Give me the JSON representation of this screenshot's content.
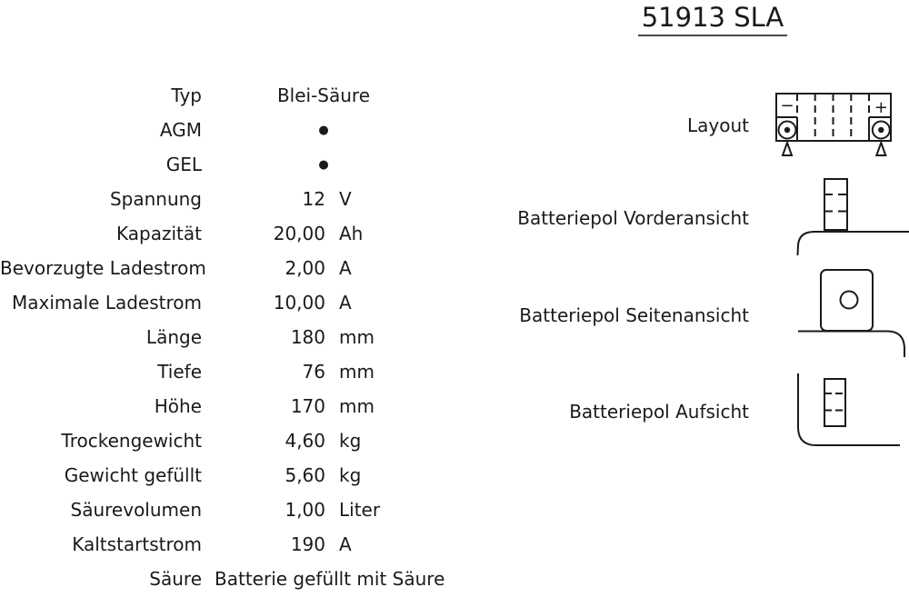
{
  "header": {
    "title": "51913 SLA"
  },
  "colors": {
    "background": "#ffffff",
    "text": "#1a1a1a",
    "diagram_stroke": "#1a1a1a"
  },
  "spec_table": {
    "rows": [
      {
        "label": "Typ",
        "value": "Blei-Säure",
        "wide": true
      },
      {
        "label": "AGM",
        "value": "●",
        "wide": true,
        "dot": true
      },
      {
        "label": "GEL",
        "value": "●",
        "wide": true,
        "dot": true
      },
      {
        "label": "Spannung",
        "value": "12",
        "unit": "V"
      },
      {
        "label": "Kapazität",
        "value": "20,00",
        "unit": "Ah"
      },
      {
        "label": "Bevorzugte Ladestrom",
        "value": "2,00",
        "unit": "A"
      },
      {
        "label": "Maximale Ladestrom",
        "value": "10,00",
        "unit": "A"
      },
      {
        "label": "Länge",
        "value": "180",
        "unit": "mm"
      },
      {
        "label": "Tiefe",
        "value": "76",
        "unit": "mm"
      },
      {
        "label": "Höhe",
        "value": "170",
        "unit": "mm"
      },
      {
        "label": "Trockengewicht",
        "value": "4,60",
        "unit": "kg"
      },
      {
        "label": "Gewicht gefüllt",
        "value": "5,60",
        "unit": "kg"
      },
      {
        "label": "Säurevolumen",
        "value": "1,00",
        "unit": "Liter"
      },
      {
        "label": "Kaltstartstrom",
        "value": "190",
        "unit": "A"
      },
      {
        "label": "Säure",
        "value": "Batterie gefüllt mit Säure",
        "wide": true
      }
    ]
  },
  "diagrams": {
    "layout_label": "Layout",
    "front_label": "Batteriepol Vorderansicht",
    "side_label": "Batteriepol Seitenansicht",
    "top_label": "Batteriepol Aufsicht",
    "negative_terminal": "−",
    "positive_terminal": "+"
  }
}
